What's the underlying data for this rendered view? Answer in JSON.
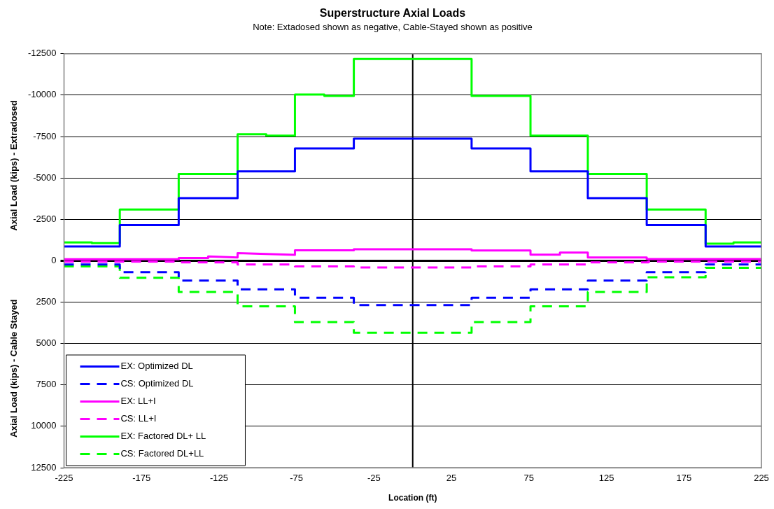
{
  "chart_data": {
    "type": "line",
    "title": "Superstructure Axial Loads",
    "subtitle": "Note: Extadosed shown as negative, Cable-Stayed shown as positive",
    "xlabel": "Location (ft)",
    "ylabel": "Axial Load (kips) - Extradosed",
    "annotations": [
      "Axial Load (kips) - Cable Stayed"
    ],
    "xlim": [
      -225,
      225
    ],
    "xticks": [
      -225,
      -175,
      -125,
      -75,
      -25,
      25,
      75,
      125,
      175,
      225
    ],
    "ylim": [
      12500,
      -12500
    ],
    "yticks": [
      -12500,
      -10000,
      -7500,
      -5000,
      -2500,
      0,
      2500,
      5000,
      7500,
      10000,
      12500
    ],
    "grid": "y",
    "legend": "bottom left",
    "marker": "none",
    "ref_lines": [
      {
        "axis": "x",
        "value": 0,
        "color": "#000000"
      }
    ],
    "series": [
      {
        "name": "EX: Optimized DL",
        "color": "#0000ff",
        "line_style": "solid",
        "x": [
          -225,
          -189,
          -189,
          -151,
          -151,
          -113,
          -113,
          -76,
          -76,
          -38,
          -38,
          38,
          38,
          76,
          76,
          113,
          113,
          151,
          151,
          189,
          189,
          225
        ],
        "values": [
          -860,
          -860,
          -2150,
          -2150,
          -3780,
          -3780,
          -5400,
          -5400,
          -6780,
          -6780,
          -7380,
          -7380,
          -6780,
          -6780,
          -5400,
          -5400,
          -3780,
          -3780,
          -2150,
          -2150,
          -860,
          -860
        ]
      },
      {
        "name": "CS: Optimized DL",
        "color": "#0000ff",
        "line_style": "dashed",
        "x": [
          -225,
          -189,
          -189,
          -151,
          -151,
          -113,
          -113,
          -76,
          -76,
          -38,
          -38,
          38,
          38,
          76,
          76,
          113,
          113,
          151,
          151,
          189,
          189,
          225
        ],
        "values": [
          230,
          230,
          690,
          690,
          1200,
          1200,
          1730,
          1730,
          2230,
          2230,
          2680,
          2680,
          2230,
          2230,
          1730,
          1730,
          1200,
          1200,
          690,
          690,
          230,
          230
        ]
      },
      {
        "name": "EX: LL+I",
        "color": "#ff00ff",
        "line_style": "solid",
        "x": [
          -225,
          -151,
          -151,
          -132,
          -132,
          -113,
          -113,
          -76,
          -76,
          -38,
          -38,
          38,
          38,
          76,
          76,
          95,
          95,
          113,
          113,
          151,
          151,
          225
        ],
        "values": [
          -90,
          -90,
          -170,
          -170,
          -260,
          -200,
          -460,
          -350,
          -630,
          -630,
          -690,
          -690,
          -620,
          -620,
          -370,
          -370,
          -490,
          -490,
          -200,
          -200,
          -100,
          -100
        ]
      },
      {
        "name": "CS: LL+I",
        "color": "#ff00ff",
        "line_style": "dashed",
        "x": [
          -225,
          -151,
          -151,
          -113,
          -113,
          -76,
          -76,
          -38,
          -38,
          38,
          38,
          76,
          76,
          113,
          113,
          152,
          152,
          225
        ],
        "values": [
          60,
          60,
          100,
          100,
          230,
          230,
          340,
          340,
          410,
          410,
          340,
          340,
          230,
          230,
          100,
          100,
          60,
          60
        ]
      },
      {
        "name": "EX: Factored DL+ LL",
        "color": "#00ff00",
        "line_style": "solid",
        "x": [
          -225,
          -207,
          -207,
          -189,
          -189,
          -151,
          -151,
          -113,
          -113,
          -94.5,
          -94.5,
          -76,
          -76,
          -57,
          -57,
          -38,
          -38,
          38,
          38,
          76,
          76,
          113,
          113,
          151,
          151,
          189,
          189,
          207,
          207,
          225
        ],
        "values": [
          -1110,
          -1110,
          -1060,
          -1060,
          -3090,
          -3090,
          -5240,
          -5240,
          -7640,
          -7640,
          -7550,
          -7550,
          -10040,
          -10040,
          -9950,
          -9950,
          -12180,
          -12180,
          -9950,
          -9950,
          -7550,
          -7550,
          -5240,
          -5240,
          -3090,
          -3090,
          -1030,
          -1030,
          -1110,
          -1110
        ]
      },
      {
        "name": "CS: Factored DL+LL",
        "color": "#00ff00",
        "line_style": "dashed",
        "x": [
          -225,
          -189,
          -189,
          -151,
          -151,
          -113,
          -113,
          -76,
          -76,
          -38,
          -38,
          38,
          38,
          76,
          76,
          113,
          113,
          151,
          151,
          189,
          189,
          225
        ],
        "values": [
          340,
          340,
          1030,
          1030,
          1890,
          1890,
          2750,
          2750,
          3700,
          3700,
          4350,
          4350,
          3700,
          3700,
          2750,
          2750,
          1890,
          1890,
          1000,
          1000,
          430,
          430
        ]
      }
    ]
  }
}
